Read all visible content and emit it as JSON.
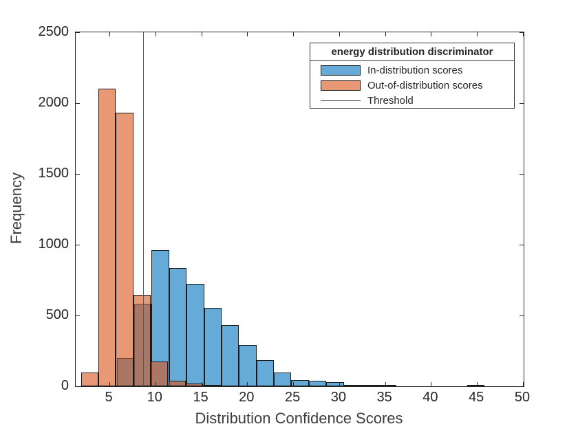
{
  "legend": {
    "title": "energy distribution discriminator",
    "items": [
      {
        "label": "In-distribution scores",
        "swatch": "box"
      },
      {
        "label": "Out-of-distribution scores",
        "swatch": "box"
      },
      {
        "label": "Threshold",
        "swatch": "line"
      }
    ]
  },
  "colors": {
    "in_distribution_fill": "#66AAD7",
    "out_distribution_fill_rgba": "rgba(217,83,25,0.6)",
    "out_distribution_fill_on_white": "#E89875",
    "overlap_fill": "#AB7665",
    "threshold_line": "#595959",
    "bar_edge": "#1a1a1a",
    "axis_color": "#262626"
  },
  "chart_data": {
    "type": "histogram",
    "xlabel": "Distribution Confidence Scores",
    "ylabel": "Frequency",
    "xlim": [
      1.3,
      50.1
    ],
    "ylim": [
      0,
      2500
    ],
    "x_ticks": [
      5,
      10,
      15,
      20,
      25,
      30,
      35,
      40,
      45,
      50
    ],
    "y_ticks": [
      0,
      500,
      1000,
      1500,
      2000,
      2500
    ],
    "grid": false,
    "legend_position": "top-right-inside",
    "threshold_x": 8.67,
    "bin_width": 1.9,
    "series": [
      {
        "name": "In-distribution scores",
        "bins": [
          [
            5.8,
            7.7,
            200
          ],
          [
            7.7,
            9.6,
            583
          ],
          [
            9.6,
            11.5,
            960
          ],
          [
            11.5,
            13.4,
            835
          ],
          [
            13.4,
            15.3,
            725
          ],
          [
            15.3,
            17.2,
            555
          ],
          [
            17.2,
            19.1,
            430
          ],
          [
            19.1,
            21.0,
            290
          ],
          [
            21.0,
            22.9,
            185
          ],
          [
            22.9,
            24.8,
            95
          ],
          [
            24.8,
            26.7,
            45
          ],
          [
            26.7,
            28.6,
            40
          ],
          [
            28.6,
            30.5,
            30
          ],
          [
            30.5,
            32.4,
            12
          ],
          [
            32.4,
            34.3,
            6
          ],
          [
            34.3,
            36.2,
            4
          ],
          [
            43.9,
            45.8,
            5
          ]
        ]
      },
      {
        "name": "Out-of-distribution scores",
        "bins": [
          [
            1.9,
            3.8,
            95
          ],
          [
            3.8,
            5.7,
            2100
          ],
          [
            5.7,
            7.6,
            1930
          ],
          [
            7.6,
            9.5,
            645
          ],
          [
            9.5,
            11.4,
            175
          ],
          [
            11.4,
            13.3,
            40
          ],
          [
            13.3,
            15.2,
            18
          ],
          [
            15.2,
            17.1,
            8
          ]
        ]
      }
    ]
  }
}
